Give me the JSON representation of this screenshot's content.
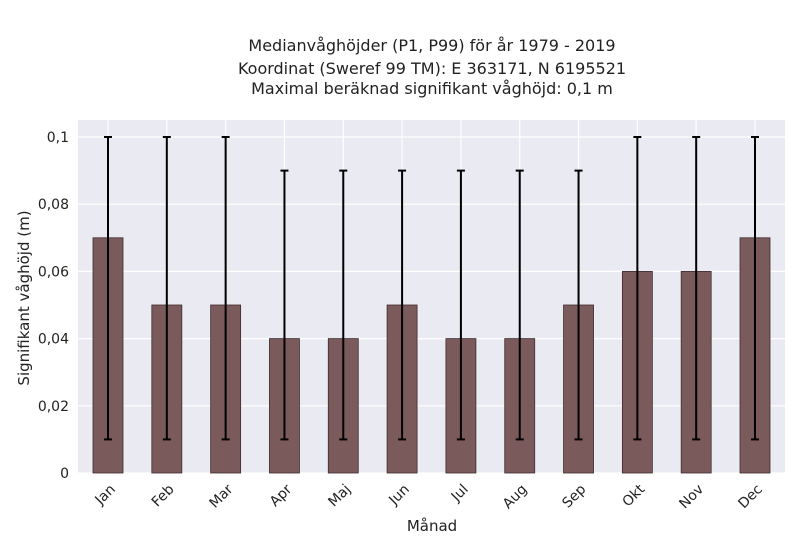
{
  "chart_data": {
    "type": "bar",
    "title_lines": [
      "Medianvåghöjder (P1, P99) för år 1979 - 2019",
      "Koordinat (Sweref 99 TM): E 363171, N 6195521",
      "Maximal beräknad signifikant våghöjd: 0,1 m"
    ],
    "xlabel": "Månad",
    "ylabel": "Signifikant våghöjd (m)",
    "categories": [
      "Jan",
      "Feb",
      "Mar",
      "Apr",
      "Maj",
      "Jun",
      "Jul",
      "Aug",
      "Sep",
      "Okt",
      "Nov",
      "Dec"
    ],
    "values": [
      0.07,
      0.05,
      0.05,
      0.04,
      0.04,
      0.05,
      0.04,
      0.04,
      0.05,
      0.06,
      0.06,
      0.07
    ],
    "error_low": [
      0.01,
      0.01,
      0.01,
      0.01,
      0.01,
      0.01,
      0.01,
      0.01,
      0.01,
      0.01,
      0.01,
      0.01
    ],
    "error_high": [
      0.1,
      0.1,
      0.1,
      0.09,
      0.09,
      0.09,
      0.09,
      0.09,
      0.09,
      0.1,
      0.1,
      0.1
    ],
    "ylim": [
      0,
      0.1
    ],
    "yticks": [
      0,
      0.02,
      0.04,
      0.06,
      0.08,
      0.1
    ],
    "ytick_labels": [
      "0",
      "0,02",
      "0,04",
      "0,06",
      "0,08",
      "0,1"
    ],
    "grid": true,
    "legend": "none",
    "colors": {
      "bar": "#7b5a5c",
      "bar_edge": "#3d2c2d",
      "error_bar": "#000000",
      "plot_background": "#eaeaf2",
      "grid": "#ffffff"
    }
  }
}
